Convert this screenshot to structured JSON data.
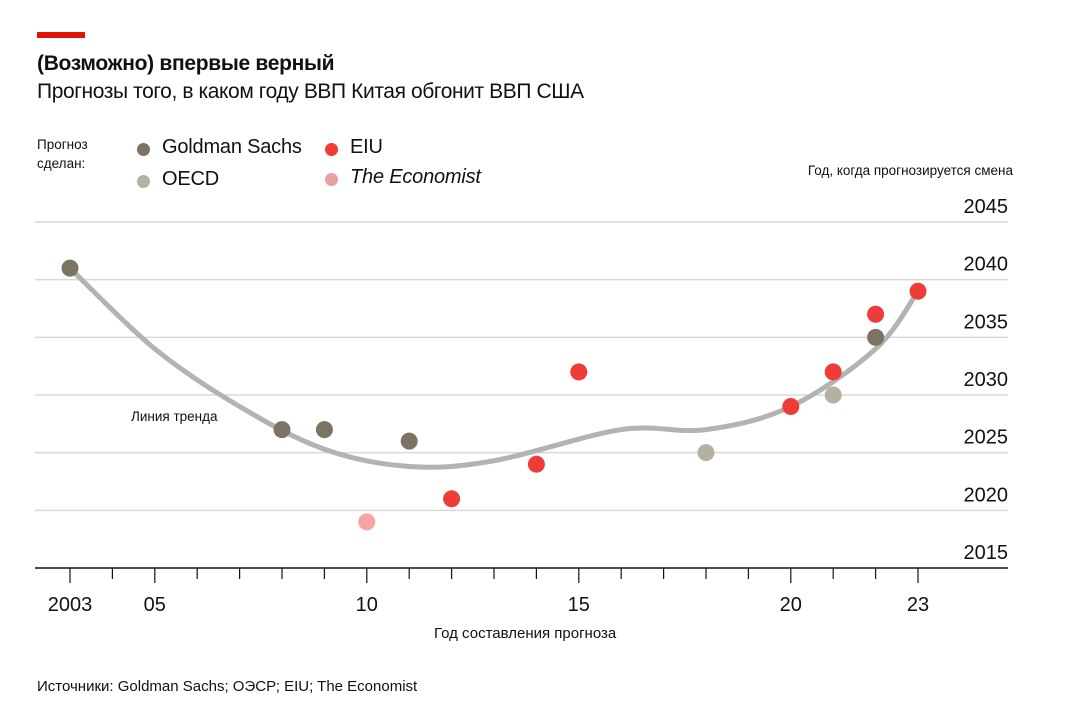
{
  "header": {
    "title": "(Возможно) впервые верный",
    "subtitle": "Прогнозы того, в каком году ВВП Китая обгонит ВВП США"
  },
  "legend": {
    "label": "Прогноз сделан:",
    "items": [
      {
        "name": "Goldman Sachs",
        "color": "#7a7461",
        "italic": false
      },
      {
        "name": "EIU",
        "color": "#f03c38",
        "italic": false
      },
      {
        "name": "OECD",
        "color": "#b5b1a0",
        "italic": false
      },
      {
        "name": "The Economist",
        "color": "#e9a0a0",
        "italic": true
      }
    ]
  },
  "footer": {
    "source": "Источники: Goldman Sachs; ОЭСР; EIU; The Economist"
  },
  "colors": {
    "accent": "#e3120b",
    "grid": "#d9d9d9",
    "trend": "#b3b3b3",
    "axis": "#111111"
  },
  "chart_data": {
    "type": "scatter",
    "title": "(Возможно) впервые верный",
    "subtitle": "Прогнозы того, в каком году ВВП Китая обгонит ВВП США",
    "xlabel": "Год составления прогноза",
    "ylabel": "Год, когда прогнозируется смена",
    "xlim": [
      2002.2,
      2025
    ],
    "ylim": [
      2015,
      2045
    ],
    "x_ticks": [
      2003,
      2004,
      2005,
      2006,
      2007,
      2008,
      2009,
      2010,
      2011,
      2012,
      2013,
      2014,
      2015,
      2016,
      2017,
      2018,
      2019,
      2020,
      2021,
      2022,
      2023
    ],
    "x_tick_labels": [
      {
        "value": 2003,
        "label": "2003"
      },
      {
        "value": 2005,
        "label": "05"
      },
      {
        "value": 2010,
        "label": "10"
      },
      {
        "value": 2015,
        "label": "15"
      },
      {
        "value": 2020,
        "label": "20"
      },
      {
        "value": 2023,
        "label": "23"
      }
    ],
    "y_ticks": [
      2015,
      2020,
      2025,
      2030,
      2035,
      2040,
      2045
    ],
    "grid": true,
    "legend_position": "top-left",
    "series": [
      {
        "name": "Goldman Sachs",
        "color": "#7a7461",
        "points": [
          [
            2003,
            2041
          ],
          [
            2008,
            2027
          ],
          [
            2009,
            2027
          ],
          [
            2011,
            2026
          ],
          [
            2022,
            2035
          ]
        ]
      },
      {
        "name": "EIU",
        "color": "#f03c38",
        "points": [
          [
            2012,
            2021
          ],
          [
            2014,
            2024
          ],
          [
            2015,
            2032
          ],
          [
            2020,
            2029
          ],
          [
            2021,
            2032
          ],
          [
            2022,
            2037
          ],
          [
            2023,
            2039
          ]
        ]
      },
      {
        "name": "OECD",
        "color": "#b5b1a0",
        "points": [
          [
            2018,
            2025
          ],
          [
            2021,
            2030
          ]
        ]
      },
      {
        "name": "The Economist",
        "color": "#f7a3a3",
        "points": [
          [
            2010,
            2019
          ]
        ]
      }
    ],
    "trend_line": {
      "label": "Линия тренда",
      "points": [
        [
          2003,
          2041
        ],
        [
          2005,
          2034
        ],
        [
          2007,
          2029
        ],
        [
          2009,
          2025.3
        ],
        [
          2011,
          2023.8
        ],
        [
          2013,
          2024.3
        ],
        [
          2016,
          2027
        ],
        [
          2018,
          2027
        ],
        [
          2020,
          2029
        ],
        [
          2022,
          2034
        ],
        [
          2023,
          2039
        ]
      ]
    }
  }
}
